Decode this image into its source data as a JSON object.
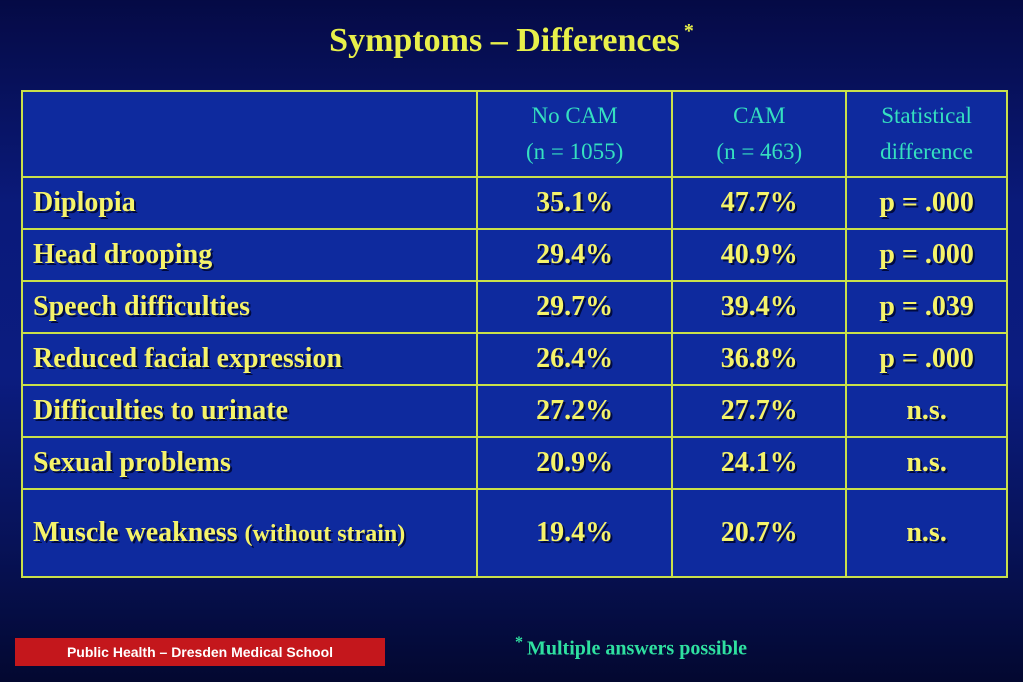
{
  "title": "Symptoms – Differences",
  "title_marker": "*",
  "table": {
    "headers": [
      {
        "line1": "",
        "line2": ""
      },
      {
        "line1": "No CAM",
        "line2": "(n = 1055)"
      },
      {
        "line1": "CAM",
        "line2": "(n = 463)"
      },
      {
        "line1": "Statistical",
        "line2": "difference"
      }
    ],
    "rows": [
      {
        "label": "Diplopia",
        "label_small": "",
        "no_cam": "35.1%",
        "cam": "47.7%",
        "diff": "p = .000"
      },
      {
        "label": "Head drooping",
        "label_small": "",
        "no_cam": "29.4%",
        "cam": "40.9%",
        "diff": "p = .000"
      },
      {
        "label": "Speech difficulties",
        "label_small": "",
        "no_cam": "29.7%",
        "cam": "39.4%",
        "diff": "p = .039"
      },
      {
        "label": "Reduced facial expression",
        "label_small": "",
        "no_cam": "26.4%",
        "cam": "36.8%",
        "diff": "p = .000"
      },
      {
        "label": "Difficulties to urinate",
        "label_small": "",
        "no_cam": "27.2%",
        "cam": "27.7%",
        "diff": "n.s."
      },
      {
        "label": "Sexual problems",
        "label_small": "",
        "no_cam": "20.9%",
        "cam": "24.1%",
        "diff": "n.s."
      },
      {
        "label": "Muscle weakness",
        "label_small": "(without strain)",
        "no_cam": "19.4%",
        "cam": "20.7%",
        "diff": "n.s."
      }
    ]
  },
  "footnote": {
    "marker": "*",
    "text": "Multiple answers possible"
  },
  "footer_label": "Public Health – Dresden Medical School",
  "colors": {
    "background": "#0b1c80",
    "title_text": "#e8f04a",
    "cell_text": "#f5f36a",
    "header_text": "#35e0c0",
    "grid_lines": "#c9e04a",
    "footer_box": "#c4171c",
    "footnote_text": "#2fe0a0"
  }
}
